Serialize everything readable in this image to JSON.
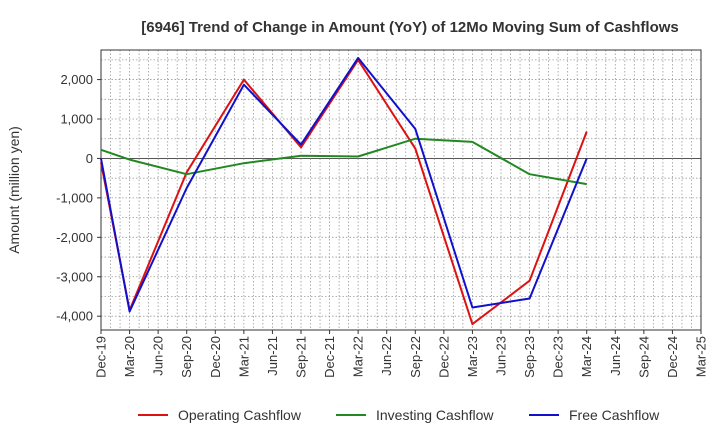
{
  "chart_data": {
    "type": "line",
    "title": "[6946]  Trend of Change in Amount (YoY) of 12Mo Moving Sum of Cashflows",
    "xlabel": "",
    "ylabel": "Amount (million yen)",
    "ylim": [
      -4350,
      2750
    ],
    "yticks": [
      2000,
      1000,
      0,
      -1000,
      -2000,
      -3000,
      -4000
    ],
    "ytick_labels": [
      "2,000",
      "1,000",
      "0",
      "-1,000",
      "-2,000",
      "-3,000",
      "-4,000"
    ],
    "categories": [
      "Dec-19",
      "Mar-20",
      "Jun-20",
      "Sep-20",
      "Dec-20",
      "Mar-21",
      "Jun-21",
      "Sep-21",
      "Dec-21",
      "Mar-22",
      "Jun-22",
      "Sep-22",
      "Dec-22",
      "Mar-23",
      "Jun-23",
      "Sep-23",
      "Dec-23",
      "Mar-24",
      "Jun-24",
      "Sep-24",
      "Dec-24",
      "Mar-25"
    ],
    "grid": true,
    "legend_position": "bottom",
    "series": [
      {
        "name": "Operating Cashflow",
        "color": "#dd1111",
        "values": [
          -100,
          -3850,
          null,
          -350,
          null,
          2000,
          null,
          280,
          null,
          2500,
          null,
          250,
          null,
          -4200,
          null,
          -3100,
          null,
          680,
          null,
          null,
          null,
          null
        ]
      },
      {
        "name": "Investing Cashflow",
        "color": "#228822",
        "values": [
          220,
          -30,
          null,
          -400,
          null,
          -120,
          null,
          70,
          null,
          50,
          null,
          500,
          null,
          420,
          null,
          -400,
          null,
          -650,
          null,
          null,
          null,
          null
        ]
      },
      {
        "name": "Free Cashflow",
        "color": "#1111cc",
        "values": [
          0,
          -3880,
          null,
          -750,
          null,
          1870,
          null,
          350,
          null,
          2550,
          null,
          750,
          null,
          -3780,
          null,
          -3550,
          null,
          0,
          null,
          null,
          null,
          null
        ]
      }
    ]
  }
}
